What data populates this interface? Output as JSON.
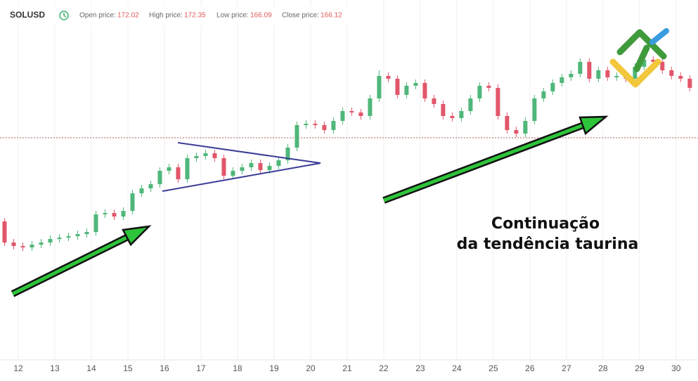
{
  "header": {
    "symbol": "SOLUSD",
    "fields": [
      {
        "label": "Open price:",
        "value": 172.02
      },
      {
        "label": "High price:",
        "value": 172.35
      },
      {
        "label": "Low price:",
        "value": 166.09
      },
      {
        "label": "Close price:",
        "value": 166.12
      }
    ]
  },
  "chart_data": {
    "type": "candlestick",
    "x": [
      11.625,
      11.875,
      12.125,
      12.375,
      12.625,
      12.875,
      13.125,
      13.375,
      13.625,
      13.875,
      14.125,
      14.375,
      14.625,
      14.875,
      15.125,
      15.375,
      15.625,
      15.875,
      16.125,
      16.375,
      16.625,
      16.875,
      17.125,
      17.375,
      17.625,
      17.875,
      18.125,
      18.375,
      18.625,
      18.875,
      19.125,
      19.375,
      19.625,
      19.875,
      20.125,
      20.375,
      20.625,
      20.875,
      21.125,
      21.375,
      21.625,
      21.875,
      22.125,
      22.375,
      22.625,
      22.875,
      23.125,
      23.375,
      23.625,
      23.875,
      24.125,
      24.375,
      24.625,
      24.875,
      25.125,
      25.375,
      25.625,
      25.875,
      26.125,
      26.375,
      26.625,
      26.875,
      27.125,
      27.375,
      27.625,
      27.875,
      28.125,
      28.375,
      28.625,
      28.875,
      29.125,
      29.375,
      29.625,
      29.875,
      30.125,
      30.375
    ],
    "open": [
      158.5,
      155.5,
      155.0,
      154.8,
      155.2,
      155.5,
      156.0,
      156.2,
      156.4,
      156.7,
      157.0,
      159.5,
      159.7,
      159.2,
      160.0,
      162.5,
      163.2,
      163.8,
      165.7,
      166.2,
      164.5,
      167.5,
      167.8,
      168.2,
      167.5,
      165.0,
      165.7,
      166.2,
      166.8,
      165.8,
      166.4,
      167.2,
      169.0,
      172.2,
      172.4,
      172.2,
      171.5,
      172.8,
      174.2,
      174.0,
      173.5,
      176.0,
      179.2,
      178.8,
      176.5,
      177.8,
      178.2,
      176.0,
      175.2,
      173.5,
      173.2,
      174.2,
      176.0,
      177.8,
      177.5,
      173.5,
      171.5,
      171.0,
      172.8,
      176.0,
      177.0,
      178.2,
      179.0,
      179.5,
      181.2,
      178.8,
      180.0,
      179.0,
      179.2,
      178.8,
      180.5,
      181.5,
      181.2,
      180.0,
      179.2,
      178.8
    ],
    "high": [
      159.0,
      156.0,
      155.5,
      155.7,
      156.0,
      156.5,
      156.7,
      156.9,
      157.2,
      157.5,
      160.0,
      160.2,
      160.2,
      160.5,
      163.0,
      163.7,
      164.3,
      166.2,
      166.7,
      166.7,
      168.0,
      168.3,
      168.7,
      168.7,
      168.0,
      166.2,
      166.7,
      167.3,
      167.3,
      166.9,
      167.7,
      169.5,
      172.7,
      172.9,
      172.9,
      172.7,
      173.3,
      174.7,
      174.7,
      174.5,
      176.5,
      180.0,
      179.7,
      179.3,
      178.3,
      178.7,
      178.7,
      176.5,
      175.7,
      174.0,
      174.7,
      176.5,
      178.3,
      178.3,
      178.0,
      174.0,
      172.0,
      173.3,
      176.5,
      177.5,
      178.7,
      179.5,
      180.0,
      181.7,
      181.7,
      180.5,
      180.5,
      179.7,
      179.7,
      181.0,
      182.0,
      182.0,
      181.7,
      180.5,
      179.7,
      179.3
    ],
    "low": [
      155.0,
      154.5,
      154.3,
      154.3,
      154.7,
      155.0,
      155.5,
      155.7,
      155.9,
      156.2,
      156.5,
      159.0,
      158.7,
      158.7,
      159.5,
      162.0,
      162.7,
      163.3,
      165.2,
      164.0,
      164.0,
      167.0,
      167.3,
      167.0,
      164.5,
      164.5,
      165.2,
      165.7,
      165.3,
      165.3,
      165.9,
      166.7,
      168.5,
      171.7,
      171.7,
      171.0,
      171.0,
      172.3,
      173.5,
      173.0,
      173.0,
      175.5,
      178.3,
      176.0,
      176.0,
      177.3,
      175.5,
      174.7,
      173.0,
      172.7,
      172.7,
      173.7,
      175.5,
      177.0,
      173.0,
      171.0,
      170.5,
      170.5,
      172.3,
      175.5,
      176.5,
      177.7,
      178.5,
      179.0,
      178.3,
      178.3,
      178.5,
      178.5,
      178.3,
      178.3,
      180.0,
      180.7,
      179.5,
      178.7,
      178.3,
      177.0
    ],
    "close": [
      155.5,
      155.0,
      154.8,
      155.2,
      155.5,
      156.0,
      156.2,
      156.4,
      156.7,
      157.0,
      159.5,
      159.7,
      159.2,
      160.0,
      162.5,
      163.2,
      163.8,
      165.7,
      166.2,
      164.5,
      167.5,
      167.8,
      168.2,
      167.5,
      165.0,
      165.7,
      166.2,
      166.8,
      165.8,
      166.4,
      167.2,
      169.0,
      172.2,
      172.4,
      172.2,
      171.5,
      172.8,
      174.2,
      174.0,
      173.5,
      176.0,
      179.2,
      178.8,
      176.5,
      177.8,
      178.2,
      176.0,
      175.2,
      173.5,
      173.2,
      174.2,
      176.0,
      177.8,
      177.5,
      173.5,
      171.5,
      171.0,
      172.8,
      176.0,
      177.0,
      178.2,
      179.0,
      179.5,
      181.2,
      178.8,
      180.0,
      179.0,
      179.2,
      178.8,
      180.5,
      181.5,
      181.2,
      180.0,
      179.2,
      178.8,
      177.5
    ],
    "up_color": "#4fb77a",
    "down_color": "#e2566b",
    "xlim": [
      11.5,
      30.6
    ],
    "xticks": [
      12,
      13,
      14,
      15,
      16,
      17,
      18,
      19,
      20,
      21,
      22,
      23,
      24,
      25,
      26,
      27,
      28,
      29,
      30
    ],
    "ylim": [
      138.8,
      190
    ],
    "price_line": 170.4,
    "grid": true,
    "annotation": [
      "Continuação",
      "da tendência taurina"
    ]
  }
}
